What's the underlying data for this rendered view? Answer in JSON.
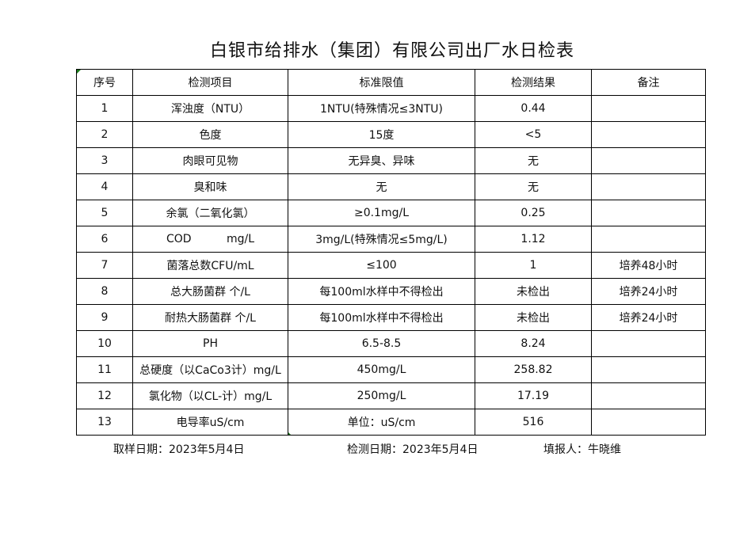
{
  "title": "白银市给排水（集团）有限公司出厂水日检表",
  "headers": [
    "序号",
    "检测项目",
    "标准限值",
    "检测结果",
    "备注"
  ],
  "rows": [
    [
      "1",
      "浑浊度（NTU）",
      "1NTU(特殊情况≤3NTU)",
      "0.44",
      ""
    ],
    [
      "2",
      "色度",
      "15度",
      "<5",
      ""
    ],
    [
      "3",
      "肉眼可见物",
      "无异臭、异味",
      "无",
      ""
    ],
    [
      "4",
      "臭和味",
      "无",
      "无",
      ""
    ],
    [
      "5",
      "余氯（二氧化氯）",
      "≥0.1mg/L",
      "0.25",
      ""
    ],
    [
      "6",
      "COD          mg/L",
      "3mg/L(特殊情况≤5mg/L)",
      "1.12",
      ""
    ],
    [
      "7",
      "菌落总数CFU/mL",
      "≤100",
      "1",
      "培养48小时"
    ],
    [
      "8",
      "总大肠菌群 个/L",
      "每100ml水样中不得检出",
      "未检出",
      "培养24小时"
    ],
    [
      "9",
      "耐热大肠菌群 个/L",
      "每100ml水样中不得检出",
      "未检出",
      "培养24小时"
    ],
    [
      "10",
      "PH",
      "6.5-8.5",
      "8.24",
      ""
    ],
    [
      "11",
      "总硬度（以CaCo3计）mg/L",
      "450mg/L",
      "258.82",
      ""
    ],
    [
      "12",
      "氯化物（以CL-计）mg/L",
      "250mg/L",
      "17.19",
      ""
    ],
    [
      "13",
      "电导率uS/cm",
      "单位：uS/cm",
      "516",
      ""
    ]
  ],
  "footer": {
    "sampling_date": "取样日期：2023年5月4日",
    "test_date": "检测日期：2023年5月4日",
    "reporter": "填报人：牛晓维"
  }
}
